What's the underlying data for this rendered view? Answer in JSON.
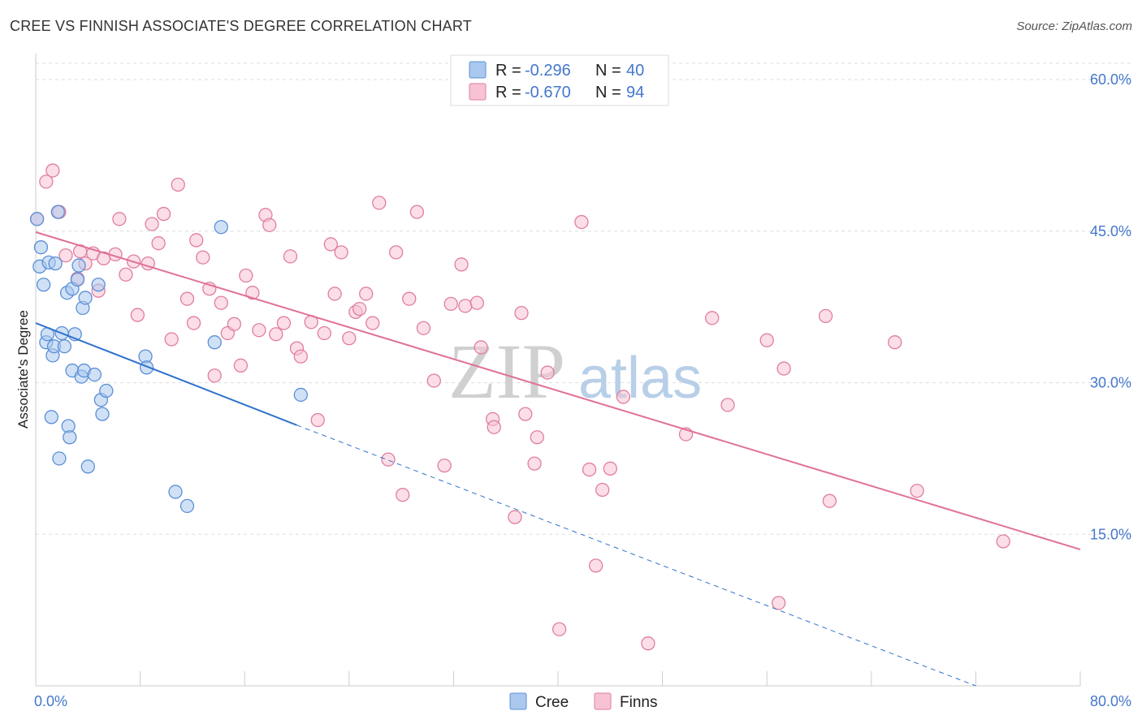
{
  "title": "CREE VS FINNISH ASSOCIATE'S DEGREE CORRELATION CHART",
  "source": "Source: ZipAtlas.com",
  "watermark": {
    "zip": "ZIP",
    "atlas": "atlas"
  },
  "colors": {
    "cree_fill": "#aac8ee",
    "cree_stroke": "#5b8fd6",
    "cree_line": "#2f72cc",
    "finns_fill": "#f7c3d4",
    "finns_stroke": "#e07ea0",
    "finns_line": "#e0709a",
    "grid": "#dddddd",
    "axis_text": "#4477cc"
  },
  "legend": {
    "rows": [
      {
        "r_label": "R = ",
        "r_value": "-0.296",
        "n_label": "N = ",
        "n_value": "40"
      },
      {
        "r_label": "R = ",
        "r_value": "-0.670",
        "n_label": "N = ",
        "n_value": "94"
      }
    ]
  },
  "bottom_legend": {
    "cree": "Cree",
    "finns": "Finns"
  },
  "chart_data": {
    "type": "scatter",
    "title": "CREE VS FINNISH ASSOCIATE'S DEGREE CORRELATION CHART",
    "xlabel": "",
    "ylabel": "Associate's Degree",
    "xlim": [
      0,
      80
    ],
    "ylim": [
      0,
      60
    ],
    "x_tick_labels": [
      "0.0%",
      "80.0%"
    ],
    "y_ticks": [
      15,
      30,
      45,
      60
    ],
    "y_tick_labels": [
      "15.0%",
      "30.0%",
      "45.0%",
      "60.0%"
    ],
    "grid": true,
    "series": [
      {
        "name": "Cree",
        "r": -0.296,
        "n": 40,
        "trend": {
          "x0": 0,
          "y0": 35.9,
          "x1": 20,
          "y1": 25.8,
          "dash_to_x": 72,
          "dash_to_y": 0
        },
        "points": [
          [
            0.1,
            46.2
          ],
          [
            0.4,
            43.4
          ],
          [
            0.3,
            41.5
          ],
          [
            0.6,
            39.7
          ],
          [
            0.8,
            34.0
          ],
          [
            0.9,
            34.8
          ],
          [
            1.0,
            41.9
          ],
          [
            1.2,
            26.6
          ],
          [
            1.3,
            32.7
          ],
          [
            1.4,
            33.6
          ],
          [
            1.5,
            41.8
          ],
          [
            1.7,
            46.9
          ],
          [
            1.8,
            22.5
          ],
          [
            2.0,
            34.9
          ],
          [
            2.2,
            33.6
          ],
          [
            2.4,
            38.9
          ],
          [
            2.5,
            25.7
          ],
          [
            2.6,
            24.6
          ],
          [
            2.8,
            39.3
          ],
          [
            2.8,
            31.2
          ],
          [
            3.0,
            34.8
          ],
          [
            3.2,
            40.2
          ],
          [
            3.3,
            41.6
          ],
          [
            3.5,
            30.6
          ],
          [
            3.6,
            37.4
          ],
          [
            3.7,
            31.2
          ],
          [
            3.8,
            38.4
          ],
          [
            4.0,
            21.7
          ],
          [
            4.5,
            30.8
          ],
          [
            4.8,
            39.7
          ],
          [
            5.0,
            28.3
          ],
          [
            5.1,
            26.9
          ],
          [
            5.4,
            29.2
          ],
          [
            8.4,
            32.6
          ],
          [
            8.5,
            31.5
          ],
          [
            10.7,
            19.2
          ],
          [
            11.6,
            17.8
          ],
          [
            13.7,
            34.0
          ],
          [
            14.2,
            45.4
          ],
          [
            20.3,
            28.8
          ]
        ]
      },
      {
        "name": "Finns",
        "r": -0.67,
        "n": 94,
        "trend": {
          "x0": 0,
          "y0": 44.9,
          "x1": 80,
          "y1": 13.5
        },
        "points": [
          [
            0.1,
            46.2
          ],
          [
            0.8,
            49.9
          ],
          [
            1.3,
            51.0
          ],
          [
            1.8,
            46.9
          ],
          [
            2.3,
            42.6
          ],
          [
            3.2,
            40.3
          ],
          [
            3.4,
            43.0
          ],
          [
            3.8,
            41.8
          ],
          [
            4.4,
            42.8
          ],
          [
            4.8,
            39.1
          ],
          [
            5.2,
            42.3
          ],
          [
            6.1,
            42.7
          ],
          [
            6.4,
            46.2
          ],
          [
            6.9,
            40.7
          ],
          [
            7.5,
            42.0
          ],
          [
            7.8,
            36.7
          ],
          [
            8.6,
            41.8
          ],
          [
            8.9,
            45.7
          ],
          [
            9.4,
            43.8
          ],
          [
            9.8,
            46.7
          ],
          [
            10.4,
            34.3
          ],
          [
            10.9,
            49.6
          ],
          [
            11.6,
            38.3
          ],
          [
            12.1,
            35.9
          ],
          [
            12.3,
            44.1
          ],
          [
            12.8,
            42.4
          ],
          [
            13.3,
            39.3
          ],
          [
            13.7,
            30.7
          ],
          [
            14.2,
            37.9
          ],
          [
            14.7,
            34.9
          ],
          [
            15.2,
            35.8
          ],
          [
            15.7,
            31.7
          ],
          [
            16.1,
            40.6
          ],
          [
            16.6,
            38.9
          ],
          [
            17.1,
            35.2
          ],
          [
            17.6,
            46.6
          ],
          [
            17.9,
            45.6
          ],
          [
            18.4,
            34.8
          ],
          [
            19.0,
            35.9
          ],
          [
            19.5,
            42.5
          ],
          [
            20.0,
            33.4
          ],
          [
            20.3,
            32.6
          ],
          [
            21.1,
            36.0
          ],
          [
            21.6,
            26.3
          ],
          [
            22.1,
            34.9
          ],
          [
            22.6,
            43.7
          ],
          [
            22.9,
            38.8
          ],
          [
            23.4,
            42.9
          ],
          [
            24.0,
            34.4
          ],
          [
            24.5,
            37.0
          ],
          [
            24.8,
            37.3
          ],
          [
            25.3,
            38.8
          ],
          [
            25.8,
            35.9
          ],
          [
            26.3,
            47.8
          ],
          [
            27.0,
            22.4
          ],
          [
            27.6,
            42.9
          ],
          [
            28.1,
            18.9
          ],
          [
            28.6,
            38.3
          ],
          [
            29.2,
            46.9
          ],
          [
            29.7,
            35.4
          ],
          [
            30.5,
            30.2
          ],
          [
            31.3,
            21.8
          ],
          [
            31.8,
            37.8
          ],
          [
            32.6,
            41.7
          ],
          [
            32.9,
            37.6
          ],
          [
            33.8,
            37.9
          ],
          [
            34.1,
            33.5
          ],
          [
            35.0,
            26.4
          ],
          [
            35.1,
            25.6
          ],
          [
            36.7,
            16.7
          ],
          [
            37.2,
            36.9
          ],
          [
            37.5,
            26.9
          ],
          [
            38.2,
            22.0
          ],
          [
            38.4,
            24.6
          ],
          [
            39.2,
            31.0
          ],
          [
            40.1,
            5.6
          ],
          [
            41.8,
            45.9
          ],
          [
            42.4,
            21.4
          ],
          [
            42.9,
            11.9
          ],
          [
            43.4,
            19.4
          ],
          [
            44.0,
            21.5
          ],
          [
            45.0,
            28.6
          ],
          [
            46.9,
            4.2
          ],
          [
            49.8,
            24.9
          ],
          [
            51.8,
            36.4
          ],
          [
            53.0,
            27.8
          ],
          [
            56.0,
            34.2
          ],
          [
            56.9,
            8.2
          ],
          [
            57.3,
            31.4
          ],
          [
            60.5,
            36.6
          ],
          [
            60.8,
            18.3
          ],
          [
            65.8,
            34.0
          ],
          [
            67.5,
            19.3
          ],
          [
            74.1,
            14.3
          ]
        ]
      }
    ]
  }
}
